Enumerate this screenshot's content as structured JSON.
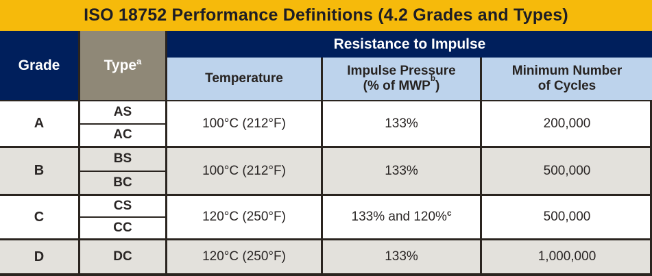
{
  "title": "ISO 18752 Performance Definitions (4.2 Grades and Types)",
  "header": {
    "grade": "Grade",
    "type": "Type",
    "type_sup": "a",
    "group": "Resistance to Impulse",
    "temperature": "Temperature",
    "impulse_line1": "Impulse Pressure",
    "impulse_prefix": "(% of MWP",
    "impulse_sup": "b",
    "impulse_suffix": ")",
    "cycles_line1": "Minimum Number",
    "cycles_line2": "of Cycles"
  },
  "rows": [
    {
      "grade": "A",
      "types": [
        "AS",
        "AC"
      ],
      "temperature": "100°C (212°F)",
      "impulse": "133%",
      "impulse_sup": "",
      "cycles": "200,000"
    },
    {
      "grade": "B",
      "types": [
        "BS",
        "BC"
      ],
      "temperature": "100°C (212°F)",
      "impulse": "133%",
      "impulse_sup": "",
      "cycles": "500,000"
    },
    {
      "grade": "C",
      "types": [
        "CS",
        "CC"
      ],
      "temperature": "120°C (250°F)",
      "impulse": "133% and 120%",
      "impulse_sup": "c",
      "cycles": "500,000"
    },
    {
      "grade": "D",
      "types": [
        "DC"
      ],
      "temperature": "120°C (250°F)",
      "impulse": "133%",
      "impulse_sup": "",
      "cycles": "1,000,000"
    }
  ],
  "colors": {
    "title_bg": "#F6BA0B",
    "title_text": "#1D1D25",
    "navy": "#001F5C",
    "taupe": "#8F8877",
    "light_blue": "#BDD3EC",
    "row_shaded": "#E3E1DC",
    "row_plain": "#FFFFFF",
    "border": "#2A241F",
    "text_dark": "#292524",
    "text_light": "#FFFFFF"
  }
}
